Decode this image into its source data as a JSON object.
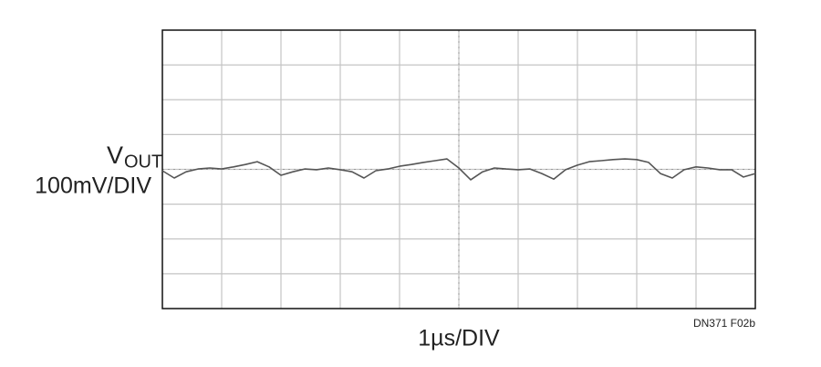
{
  "chart_data": {
    "type": "line",
    "ylabel": {
      "symbol": "V",
      "subscript": "OUT",
      "scale": "100mV/DIV"
    },
    "xlabel": "1µs/DIV",
    "note": "DN371 F02b",
    "xlim": [
      0,
      10
    ],
    "ylim": [
      -400,
      400
    ],
    "grid": true,
    "x": [
      0,
      0.2,
      0.4,
      0.6,
      0.8,
      1.0,
      1.2,
      1.4,
      1.6,
      1.8,
      2.0,
      2.2,
      2.4,
      2.6,
      2.8,
      3.0,
      3.2,
      3.4,
      3.6,
      3.8,
      4.0,
      4.2,
      4.4,
      4.6,
      4.8,
      5.0,
      5.2,
      5.4,
      5.6,
      5.8,
      6.0,
      6.2,
      6.4,
      6.6,
      6.8,
      7.0,
      7.2,
      7.4,
      7.6,
      7.8,
      8.0,
      8.2,
      8.4,
      8.6,
      8.8,
      9.0,
      9.2,
      9.4,
      9.6,
      9.8,
      10.0
    ],
    "series": [
      {
        "color": "#555555",
        "values": [
          -4,
          -25,
          -7,
          1,
          4,
          1,
          7,
          14,
          22,
          7,
          -17,
          -7,
          1,
          -1,
          4,
          -1,
          -7,
          -25,
          -4,
          1,
          9,
          14,
          20,
          25,
          30,
          4,
          -30,
          -7,
          4,
          1,
          -1,
          1,
          -12,
          -28,
          -1,
          12,
          22,
          25,
          28,
          30,
          28,
          20,
          -12,
          -25,
          -1,
          7,
          4,
          -1,
          -1,
          -22,
          -12
        ]
      }
    ]
  }
}
